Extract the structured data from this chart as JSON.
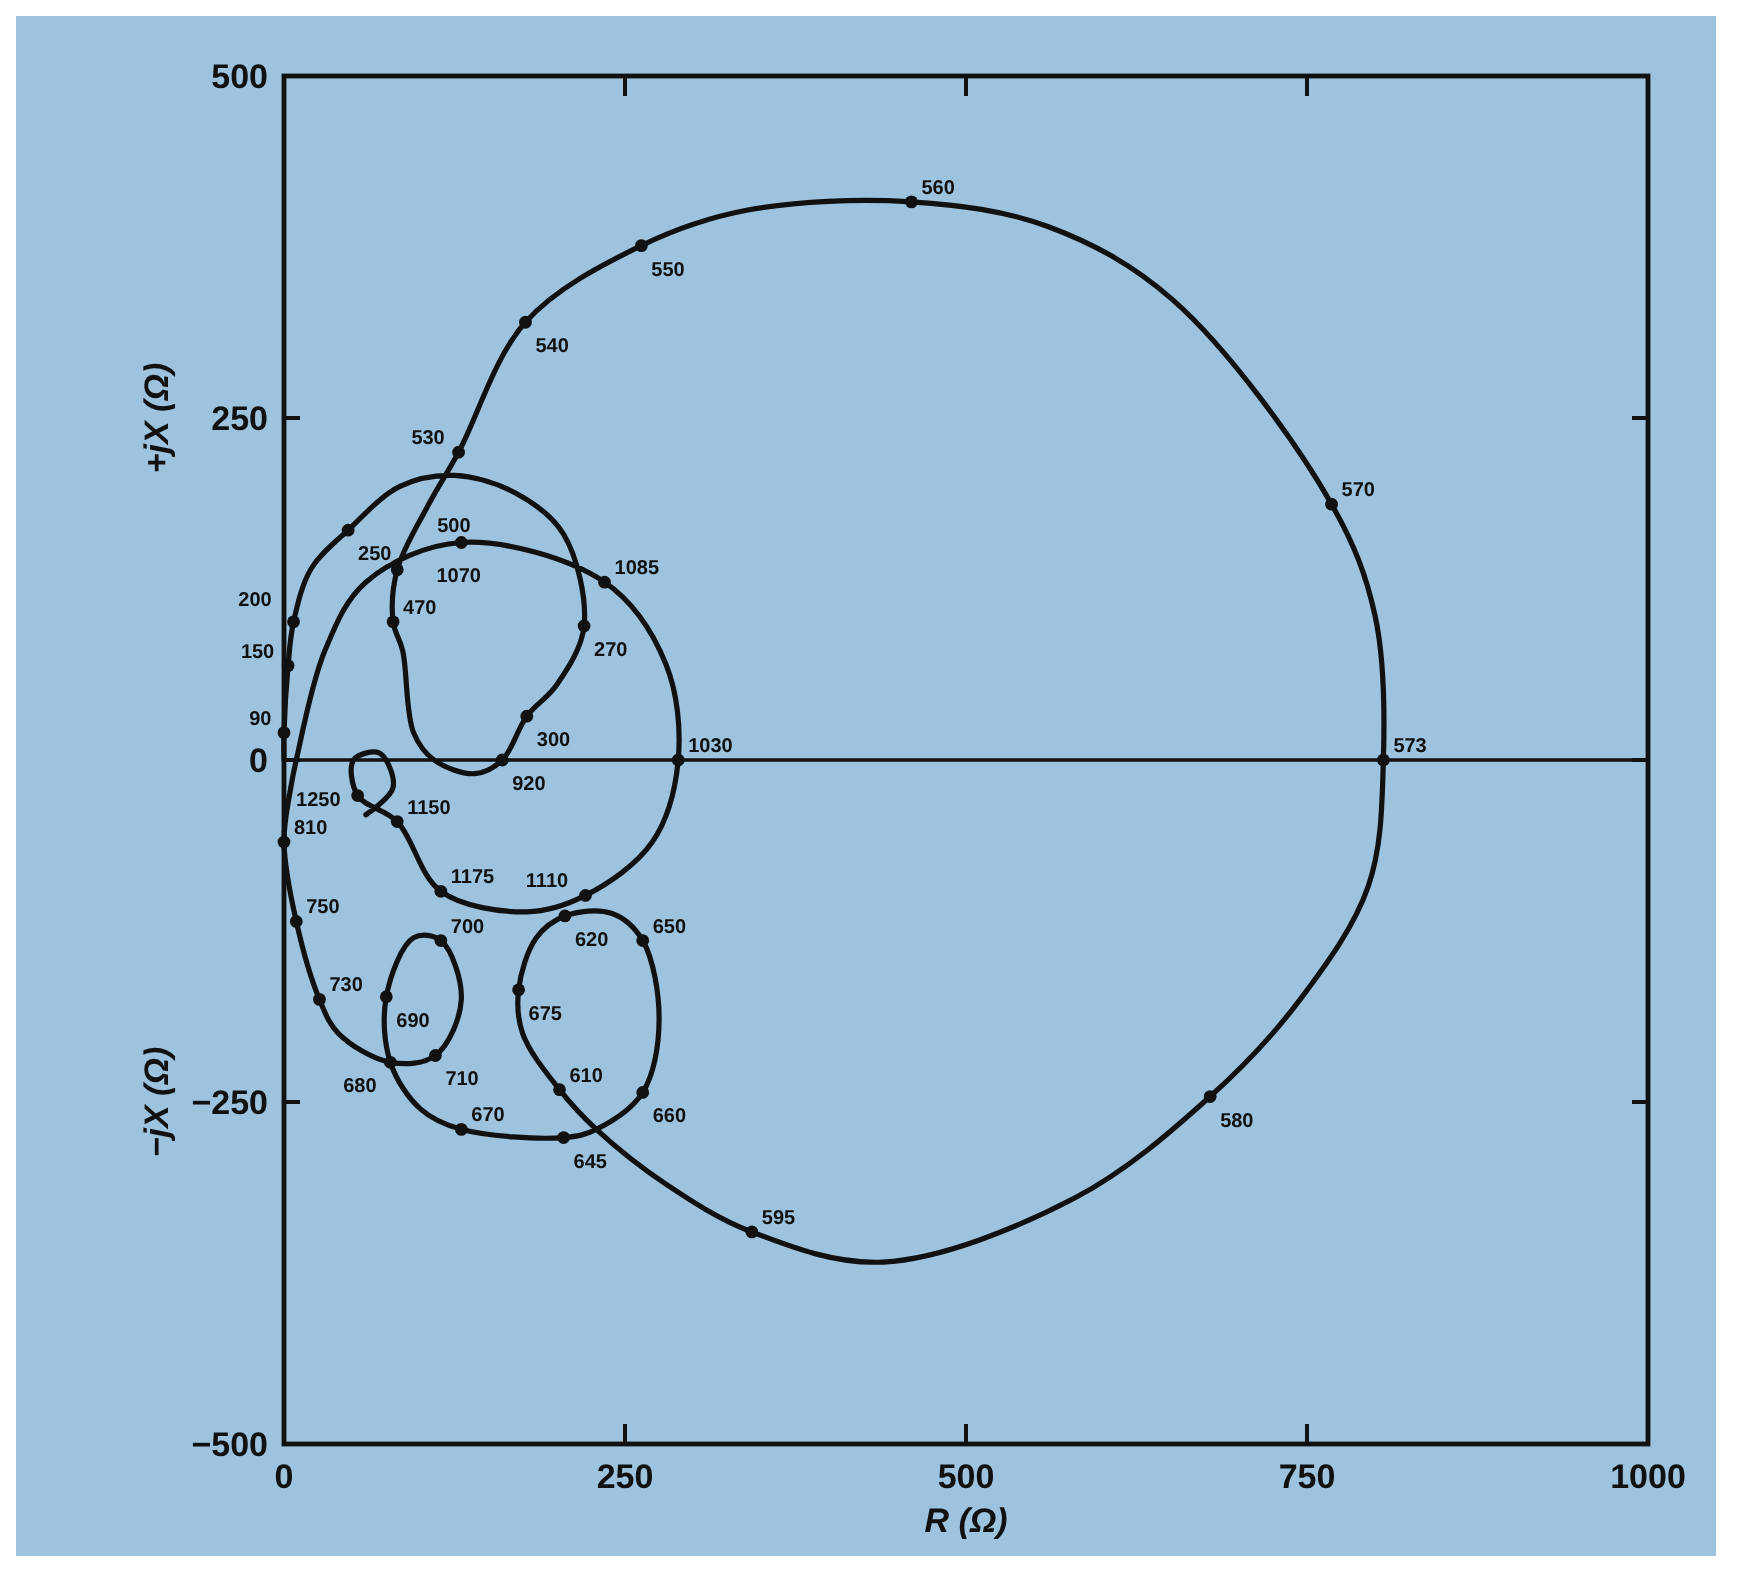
{
  "chart_data": {
    "type": "line",
    "xlabel": "R (Ω)",
    "ylabel": "+jX (Ω)",
    "xlim": [
      0,
      1000
    ],
    "ylim": [
      -500,
      500
    ],
    "xticks": [
      0,
      250,
      500,
      750,
      1000
    ],
    "yticks": [
      -500,
      -250,
      0,
      250,
      500
    ],
    "grid": false,
    "marker": "none",
    "line_style": "solid",
    "ref_lines": [
      {
        "axis": "y",
        "value": 0,
        "color": "#111111"
      }
    ],
    "series": [
      {
        "color": "#111111",
        "x": [
          0,
          0,
          3,
          7,
          20,
          47,
          85,
          125,
          170,
          205,
          220,
          200,
          178,
          160,
          140,
          110,
          95,
          87,
          80,
          83,
          105,
          128,
          177,
          262,
          340,
          460,
          560,
          652,
          768,
          800,
          806,
          795,
          745,
          679,
          580,
          439,
          343,
          280,
          229,
          202,
          175,
          172,
          185,
          206,
          240,
          263,
          275,
          263,
          229,
          205,
          130,
          100,
          78,
          75,
          95,
          115,
          130,
          111,
          78,
          40,
          26,
          9,
          0,
          5,
          9,
          30,
          60,
          130,
          235,
          280,
          289,
          270,
          221,
          178,
          115,
          83,
          54,
          51,
          70,
          80,
          60
        ],
        "values": [
          0,
          20,
          69,
          101,
          140,
          168,
          200,
          208,
          195,
          165,
          98,
          55,
          32,
          0,
          -10,
          0,
          20,
          80,
          101,
          139,
          185,
          225,
          320,
          376,
          402,
          408,
          390,
          336,
          187,
          105,
          0,
          -92,
          -175,
          -246,
          -320,
          -367,
          -345,
          -310,
          -270,
          -241,
          -200,
          -168,
          -130,
          -114,
          -112,
          -132,
          -190,
          -243,
          -270,
          -276,
          -270,
          -255,
          -221,
          -173,
          -130,
          -132,
          -175,
          -216,
          -221,
          -200,
          -175,
          -118,
          -60,
          -20,
          0,
          80,
          130,
          159,
          130,
          70,
          0,
          -60,
          -99,
          -111,
          -96,
          -45,
          -26,
          0,
          5,
          -20,
          -40
        ]
      },
      {
        "type": "scatter",
        "color": "#111111",
        "marker": "circle",
        "x": [
          0,
          3,
          7,
          47,
          80,
          83,
          128,
          177,
          262,
          460,
          768,
          806,
          679,
          343,
          202,
          206,
          263,
          263,
          172,
          205,
          130,
          78,
          75,
          115,
          111,
          26,
          9,
          0,
          130,
          235,
          289,
          221,
          115,
          83,
          54,
          220,
          178,
          160
        ],
        "values": [
          20,
          69,
          101,
          168,
          101,
          139,
          225,
          320,
          376,
          408,
          187,
          0,
          -246,
          -345,
          -241,
          -114,
          -132,
          -243,
          -168,
          -276,
          -270,
          -221,
          -173,
          -132,
          -216,
          -175,
          -118,
          -60,
          159,
          130,
          0,
          -99,
          -96,
          -45,
          -26,
          98,
          32,
          0
        ]
      }
    ],
    "annotations": [
      "−jX (Ω)",
      {
        "text": "90",
        "x": 0,
        "y": 20
      },
      {
        "text": "150",
        "x": 3,
        "y": 69
      },
      {
        "text": "200",
        "x": 7,
        "y": 101
      },
      {
        "text": "250",
        "x": 47,
        "y": 168
      },
      {
        "text": "470",
        "x": 80,
        "y": 101
      },
      {
        "text": "500",
        "x": 83,
        "y": 139
      },
      {
        "text": "530",
        "x": 128,
        "y": 225
      },
      {
        "text": "540",
        "x": 177,
        "y": 320
      },
      {
        "text": "550",
        "x": 262,
        "y": 376
      },
      {
        "text": "560",
        "x": 460,
        "y": 408
      },
      {
        "text": "570",
        "x": 768,
        "y": 187
      },
      {
        "text": "573",
        "x": 806,
        "y": 0
      },
      {
        "text": "580",
        "x": 679,
        "y": -246
      },
      {
        "text": "595",
        "x": 343,
        "y": -345
      },
      {
        "text": "610",
        "x": 202,
        "y": -241
      },
      {
        "text": "620",
        "x": 206,
        "y": -114
      },
      {
        "text": "650",
        "x": 263,
        "y": -132
      },
      {
        "text": "660",
        "x": 263,
        "y": -243
      },
      {
        "text": "675",
        "x": 172,
        "y": -168
      },
      {
        "text": "645",
        "x": 205,
        "y": -276
      },
      {
        "text": "670",
        "x": 130,
        "y": -270
      },
      {
        "text": "680",
        "x": 78,
        "y": -221
      },
      {
        "text": "690",
        "x": 75,
        "y": -173
      },
      {
        "text": "700",
        "x": 115,
        "y": -132
      },
      {
        "text": "710",
        "x": 111,
        "y": -216
      },
      {
        "text": "730",
        "x": 26,
        "y": -175
      },
      {
        "text": "750",
        "x": 9,
        "y": -118
      },
      {
        "text": "810",
        "x": 0,
        "y": -60
      },
      {
        "text": "1070",
        "x": 130,
        "y": 159
      },
      {
        "text": "1085",
        "x": 235,
        "y": 130
      },
      {
        "text": "1030",
        "x": 289,
        "y": 0
      },
      {
        "text": "1110",
        "x": 221,
        "y": -99
      },
      {
        "text": "1175",
        "x": 115,
        "y": -96
      },
      {
        "text": "1150",
        "x": 83,
        "y": -45
      },
      {
        "text": "1250",
        "x": 54,
        "y": -26
      },
      {
        "text": "270",
        "x": 220,
        "y": 98
      },
      {
        "text": "300",
        "x": 178,
        "y": 32
      },
      {
        "text": "920",
        "x": 160,
        "y": 0
      }
    ]
  }
}
